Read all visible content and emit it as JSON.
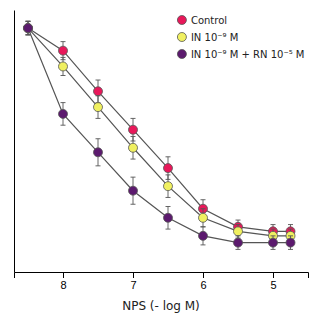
{
  "chart_data": {
    "type": "line",
    "x_label": "NPS (- log M)",
    "x": [
      8.5,
      8.0,
      7.5,
      7.0,
      6.5,
      6.0,
      5.5,
      5.0,
      4.75
    ],
    "xlim": [
      8.7,
      4.5
    ],
    "xticks": [
      8,
      7,
      6,
      5
    ],
    "ylim": [
      -8,
      108
    ],
    "tick_labels": "x",
    "grid": false,
    "legend": "upper right",
    "marker": "circle",
    "color": "#555555",
    "series": [
      {
        "name": "Control",
        "color": "#E8185A",
        "values": [
          100,
          90,
          72,
          55,
          38,
          20,
          12,
          10,
          10
        ],
        "errors": [
          3,
          4,
          5,
          5,
          5,
          4,
          3,
          3,
          3
        ]
      },
      {
        "name": "IN 10⁻⁹ M",
        "color": "#F0F060",
        "values": [
          100,
          83,
          65,
          47,
          30,
          16,
          10,
          8,
          8
        ],
        "errors": [
          3,
          4,
          5,
          5,
          5,
          4,
          3,
          3,
          3
        ]
      },
      {
        "name": "IN 10⁻⁹ M + RN 10⁻⁵ M",
        "color": "#5C1A6E",
        "values": [
          100,
          62,
          45,
          28,
          16,
          8,
          5,
          5,
          5
        ],
        "errors": [
          3,
          5,
          6,
          6,
          5,
          4,
          3,
          3,
          3
        ]
      }
    ]
  }
}
